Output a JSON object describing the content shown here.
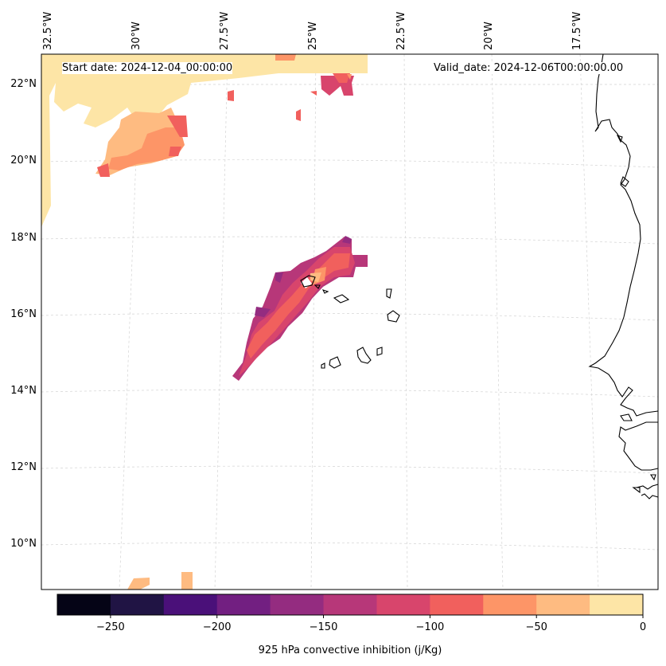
{
  "map": {
    "start_date_text": "Start date: 2024-12-04_00:00:00",
    "valid_date_text": "Valid_date: 2024-12-06T00:00:00.00",
    "longitude_labels": [
      "32.5°W",
      "30°W",
      "27.5°W",
      "25°W",
      "22.5°W",
      "20°W",
      "17.5°W"
    ],
    "latitude_labels": [
      "22°N",
      "20°N",
      "18°N",
      "16°N",
      "14°N",
      "12°N",
      "10°N"
    ]
  },
  "colorbar": {
    "label": "925 hPa convective inhibition (j/Kg)",
    "tick_labels": [
      "−250",
      "−200",
      "−150",
      "−100",
      "−50",
      "0"
    ],
    "levels": [
      -275,
      -250,
      -225,
      -200,
      -175,
      -150,
      -125,
      -100,
      -75,
      -50,
      -25,
      0
    ],
    "colors": [
      "#050416",
      "#201444",
      "#4a1079",
      "#721f81",
      "#942c80",
      "#b73779",
      "#d8456c",
      "#f1605d",
      "#fd9567",
      "#febb81",
      "#fde5a6"
    ]
  },
  "colors": {
    "land_outline": "#000000",
    "gridline": "#d0d0d0"
  }
}
